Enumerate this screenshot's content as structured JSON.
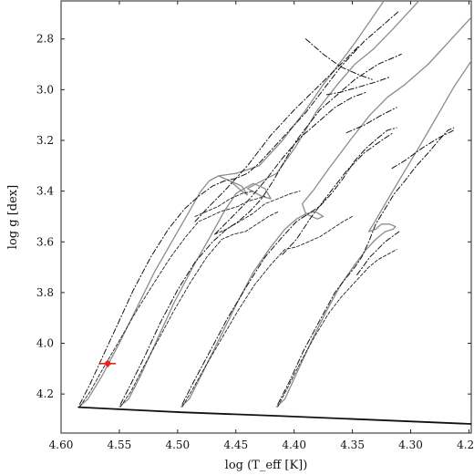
{
  "chart_data": {
    "type": "line",
    "title": "",
    "xlabel": "log (T_eff [K])",
    "ylabel": "log g [dex]",
    "x_reversed": true,
    "y_reversed": true,
    "xlim": [
      4.6,
      4.248
    ],
    "ylim": [
      2.65,
      4.354
    ],
    "x_ticks": [
      "4.60",
      "4.55",
      "4.50",
      "4.45",
      "4.40",
      "4.35",
      "4.30",
      "4.25"
    ],
    "y_ticks": [
      "2.8",
      "3.0",
      "3.2",
      "3.4",
      "3.6",
      "3.8",
      "4.0",
      "4.2"
    ],
    "grid": false,
    "legend": "none",
    "colors": {
      "solid": "#8c8c8c",
      "zams": "#111111",
      "dashdot": "#111111",
      "dashed": "#222222",
      "star": "#e8251d"
    },
    "series": [
      {
        "style": "solid",
        "x": [
          4.585,
          4.577,
          4.565,
          4.55,
          4.535,
          4.52,
          4.505,
          4.49,
          4.48,
          4.473,
          4.465,
          4.455,
          4.445,
          4.44,
          4.445,
          4.465,
          4.45,
          4.43,
          4.41,
          4.39,
          4.375,
          4.36,
          4.347,
          4.335,
          4.32,
          4.3
        ],
        "y": [
          4.252,
          4.22,
          4.13,
          4.0,
          3.86,
          3.72,
          3.6,
          3.48,
          3.4,
          3.36,
          3.34,
          3.36,
          3.4,
          3.415,
          3.38,
          3.34,
          3.33,
          3.3,
          3.2,
          3.08,
          2.98,
          2.89,
          2.81,
          2.73,
          2.63,
          2.5
        ]
      },
      {
        "style": "solid",
        "x": [
          4.55,
          4.542,
          4.532,
          4.518,
          4.503,
          4.487,
          4.472,
          4.46,
          4.45,
          4.443,
          4.435,
          4.425,
          4.42,
          4.428,
          4.44,
          4.432,
          4.415,
          4.398,
          4.38,
          4.363,
          4.348,
          4.332,
          4.315,
          4.295,
          4.27
        ],
        "y": [
          4.25,
          4.22,
          4.13,
          3.99,
          3.84,
          3.7,
          3.58,
          3.48,
          3.41,
          3.39,
          3.37,
          3.39,
          3.43,
          3.42,
          3.39,
          3.37,
          3.33,
          3.22,
          3.08,
          2.98,
          2.9,
          2.84,
          2.76,
          2.66,
          2.54
        ]
      },
      {
        "style": "solid",
        "x": [
          4.497,
          4.49,
          4.479,
          4.465,
          4.45,
          4.435,
          4.42,
          4.408,
          4.398,
          4.39,
          4.382,
          4.375,
          4.38,
          4.39,
          4.393,
          4.384,
          4.37,
          4.352,
          4.335,
          4.32,
          4.305,
          4.285,
          4.265,
          4.245
        ],
        "y": [
          4.25,
          4.22,
          4.12,
          3.99,
          3.85,
          3.72,
          3.62,
          3.55,
          3.51,
          3.49,
          3.48,
          3.5,
          3.51,
          3.49,
          3.45,
          3.4,
          3.31,
          3.2,
          3.1,
          3.03,
          2.98,
          2.9,
          2.8,
          2.7
        ]
      },
      {
        "style": "solid",
        "x": [
          4.415,
          4.408,
          4.398,
          4.385,
          4.372,
          4.36,
          4.348,
          4.338,
          4.33,
          4.322,
          4.315,
          4.313,
          4.318,
          4.325,
          4.33,
          4.336,
          4.332,
          4.318,
          4.305,
          4.292,
          4.278,
          4.263,
          4.247
        ],
        "y": [
          4.25,
          4.22,
          4.12,
          3.99,
          3.87,
          3.77,
          3.69,
          3.63,
          3.59,
          3.56,
          3.55,
          3.54,
          3.53,
          3.53,
          3.55,
          3.56,
          3.53,
          3.42,
          3.32,
          3.22,
          3.11,
          2.99,
          2.88
        ]
      },
      {
        "style": "dashdot",
        "x": [
          4.584,
          4.575,
          4.565,
          4.552,
          4.538,
          4.523,
          4.508,
          4.494,
          4.482,
          4.47,
          4.46,
          4.45,
          4.44,
          4.43,
          4.42,
          4.41,
          4.4,
          4.39,
          4.38,
          4.37,
          4.36,
          4.35,
          4.34,
          4.33,
          4.32,
          4.31
        ],
        "y": [
          4.24,
          4.16,
          4.06,
          3.93,
          3.79,
          3.66,
          3.55,
          3.47,
          3.42,
          3.38,
          3.36,
          3.35,
          3.33,
          3.29,
          3.24,
          3.19,
          3.14,
          3.09,
          3.03,
          2.97,
          2.91,
          2.86,
          2.81,
          2.77,
          2.73,
          2.69
        ]
      },
      {
        "style": "dashdot",
        "x": [
          4.485,
          4.475,
          4.46,
          4.44,
          4.42,
          4.4,
          4.38,
          4.36,
          4.345
        ],
        "y": [
          3.52,
          3.47,
          3.4,
          3.3,
          3.18,
          3.08,
          2.99,
          2.9,
          2.83
        ]
      },
      {
        "style": "dashdot",
        "x": [
          4.39,
          4.375,
          4.36,
          4.345,
          4.333
        ],
        "y": [
          2.8,
          2.86,
          2.91,
          2.94,
          2.96
        ]
      },
      {
        "style": "dashdot",
        "x": [
          4.549,
          4.54,
          4.528,
          4.515,
          4.5,
          4.485,
          4.47,
          4.458,
          4.448,
          4.438,
          4.428,
          4.418,
          4.408,
          4.398,
          4.388,
          4.378,
          4.368,
          4.358,
          4.348,
          4.338,
          4.328,
          4.318,
          4.308
        ],
        "y": [
          4.24,
          4.16,
          4.05,
          3.92,
          3.79,
          3.68,
          3.6,
          3.55,
          3.52,
          3.48,
          3.43,
          3.36,
          3.28,
          3.2,
          3.14,
          3.08,
          3.04,
          3.0,
          2.96,
          2.93,
          2.9,
          2.88,
          2.86
        ]
      },
      {
        "style": "dashdot",
        "x": [
          4.468,
          4.455,
          4.44,
          4.425,
          4.41,
          4.395,
          4.38,
          4.365,
          4.35,
          4.338
        ],
        "y": [
          3.57,
          3.51,
          3.44,
          3.36,
          3.27,
          3.19,
          3.13,
          3.07,
          3.03,
          3.01
        ]
      },
      {
        "style": "dashdot",
        "x": [
          4.372,
          4.36,
          4.345,
          4.33,
          4.318
        ],
        "y": [
          3.02,
          3.01,
          2.99,
          2.97,
          2.95
        ]
      },
      {
        "style": "dashdot",
        "x": [
          4.496,
          4.486,
          4.472,
          4.457,
          4.44,
          4.425,
          4.41,
          4.398,
          4.388,
          4.378,
          4.368,
          4.358,
          4.348,
          4.338,
          4.328,
          4.32,
          4.312
        ],
        "y": [
          4.24,
          4.15,
          4.03,
          3.9,
          3.77,
          3.66,
          3.58,
          3.52,
          3.49,
          3.46,
          3.41,
          3.35,
          3.28,
          3.23,
          3.19,
          3.16,
          3.15
        ]
      },
      {
        "style": "dashdot",
        "x": [
          4.41,
          4.398,
          4.385,
          4.37,
          4.355,
          4.34,
          4.325,
          4.315
        ],
        "y": [
          3.65,
          3.59,
          3.5,
          3.41,
          3.32,
          3.25,
          3.2,
          3.17
        ]
      },
      {
        "style": "dashdot",
        "x": [
          4.355,
          4.34,
          4.325,
          4.312
        ],
        "y": [
          3.17,
          3.14,
          3.1,
          3.07
        ]
      },
      {
        "style": "dashdot",
        "x": [
          4.414,
          4.404,
          4.392,
          4.378,
          4.365,
          4.355,
          4.348,
          4.342,
          4.336,
          4.33,
          4.322,
          4.314,
          4.305,
          4.295,
          4.285,
          4.276,
          4.268,
          4.263
        ],
        "y": [
          4.24,
          4.15,
          4.03,
          3.91,
          3.8,
          3.74,
          3.7,
          3.66,
          3.6,
          3.53,
          3.47,
          3.41,
          3.36,
          3.3,
          3.25,
          3.2,
          3.16,
          3.15
        ]
      },
      {
        "style": "dashdot",
        "x": [
          4.346,
          4.335,
          4.322,
          4.31
        ],
        "y": [
          3.73,
          3.66,
          3.6,
          3.56
        ]
      },
      {
        "style": "dashdot",
        "x": [
          4.316,
          4.305,
          4.29,
          4.276,
          4.263
        ],
        "y": [
          3.31,
          3.28,
          3.23,
          3.19,
          3.16
        ]
      },
      {
        "style": "dashed",
        "x": [
          4.584,
          4.575,
          4.564,
          4.55,
          4.535,
          4.52,
          4.506,
          4.493,
          4.482,
          4.472,
          4.463,
          4.455,
          4.448,
          4.44,
          4.432,
          4.425
        ],
        "y": [
          4.25,
          4.19,
          4.1,
          3.99,
          3.87,
          3.76,
          3.66,
          3.58,
          3.52,
          3.5,
          3.48,
          3.47,
          3.46,
          3.44,
          3.43,
          3.42
        ]
      },
      {
        "style": "dashed",
        "x": [
          4.485,
          4.475,
          4.465,
          4.455,
          4.445,
          4.435
        ],
        "y": [
          3.5,
          3.48,
          3.46,
          3.43,
          3.41,
          3.4
        ]
      },
      {
        "style": "dashed",
        "x": [
          4.549,
          4.54,
          4.53,
          4.517,
          4.503,
          4.489,
          4.475,
          4.462,
          4.452,
          4.442,
          4.432,
          4.422,
          4.413
        ],
        "y": [
          4.25,
          4.19,
          4.1,
          3.99,
          3.87,
          3.76,
          3.66,
          3.59,
          3.57,
          3.56,
          3.53,
          3.5,
          3.48
        ]
      },
      {
        "style": "dashed",
        "x": [
          4.468,
          4.458,
          4.447,
          4.436,
          4.425,
          4.414,
          4.403,
          4.395
        ],
        "y": [
          3.57,
          3.55,
          3.52,
          3.49,
          3.45,
          3.43,
          3.41,
          3.4
        ]
      },
      {
        "style": "dashed",
        "x": [
          4.496,
          4.487,
          4.476,
          4.462,
          4.448,
          4.434,
          4.42,
          4.408,
          4.398,
          4.388,
          4.378,
          4.368,
          4.358,
          4.35
        ],
        "y": [
          4.25,
          4.18,
          4.09,
          3.98,
          3.87,
          3.77,
          3.69,
          3.63,
          3.62,
          3.6,
          3.58,
          3.55,
          3.52,
          3.5
        ]
      },
      {
        "style": "dashed",
        "x": [
          4.414,
          4.405,
          4.394,
          4.382,
          4.37,
          4.36,
          4.352,
          4.344,
          4.336,
          4.328,
          4.32,
          4.312
        ],
        "y": [
          4.25,
          4.17,
          4.07,
          3.97,
          3.88,
          3.82,
          3.78,
          3.74,
          3.7,
          3.67,
          3.65,
          3.63
        ]
      },
      {
        "style": "zams",
        "x": [
          4.585,
          4.55,
          4.497,
          4.415,
          4.248
        ],
        "y": [
          4.252,
          4.26,
          4.272,
          4.286,
          4.318
        ]
      }
    ],
    "star": {
      "x": 4.56,
      "y": 4.08,
      "x_err": 0.007,
      "y_err": 0.01
    }
  }
}
